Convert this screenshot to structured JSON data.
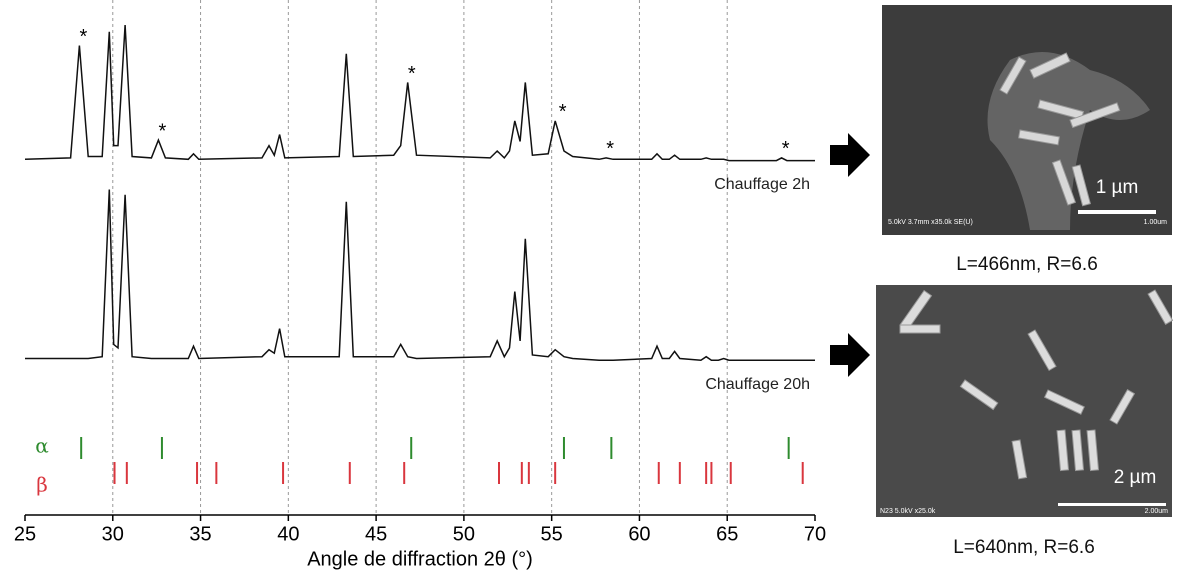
{
  "chart_data": {
    "type": "line",
    "x_label": "Angle de diffraction 2θ (°)",
    "x": [
      25,
      27.6,
      28.1,
      28.6,
      29.4,
      29.8,
      30.05,
      30.3,
      30.7,
      31.1,
      32.2,
      32.6,
      33.0,
      34.3,
      34.6,
      34.9,
      38.5,
      38.9,
      39.2,
      39.5,
      39.8,
      42.9,
      43.3,
      43.7,
      46.0,
      46.4,
      46.8,
      47.3,
      51.5,
      51.9,
      52.3,
      52.6,
      52.9,
      53.2,
      53.5,
      53.9,
      54.8,
      55.2,
      55.7,
      56.2,
      57.7,
      58.1,
      58.5,
      60.7,
      61.0,
      61.3,
      61.7,
      62.0,
      62.3,
      63.5,
      63.8,
      64.1,
      64.5,
      64.8,
      65.1,
      67.8,
      68.1,
      68.4,
      70
    ],
    "series": [
      {
        "name": "Chauffage 2h",
        "color": "#111111",
        "values": [
          2,
          3,
          85,
          4,
          4,
          95,
          12,
          12,
          100,
          4,
          3,
          16,
          3,
          2,
          6,
          2,
          3,
          12,
          5,
          20,
          3,
          4,
          79,
          4,
          5,
          12,
          58,
          5,
          3,
          8,
          3,
          8,
          30,
          15,
          58,
          5,
          6,
          30,
          8,
          4,
          2,
          3,
          2,
          2,
          6,
          2,
          2,
          5,
          2,
          2,
          3,
          2,
          2,
          2,
          1,
          1,
          3,
          1,
          1
        ]
      },
      {
        "name": "Chauffage 20h",
        "color": "#111111",
        "values": [
          2,
          2,
          2,
          2,
          3,
          98,
          10,
          8,
          95,
          3,
          2,
          2,
          2,
          2,
          9,
          2,
          3,
          7,
          5,
          19,
          3,
          3,
          91,
          3,
          3,
          10,
          3,
          2,
          3,
          12,
          3,
          8,
          40,
          12,
          70,
          4,
          3,
          7,
          3,
          2,
          1,
          1,
          1,
          2,
          9,
          2,
          2,
          6,
          2,
          1,
          3,
          1,
          1,
          2,
          1,
          1,
          1,
          1,
          1
        ]
      }
    ],
    "ylim": [
      0,
      100
    ],
    "xlim": [
      25,
      70
    ],
    "xticks": [
      25,
      30,
      35,
      40,
      45,
      50,
      55,
      60,
      65,
      70
    ],
    "grid": true,
    "annotations": [
      {
        "x": 28.1,
        "text": "*"
      },
      {
        "x": 32.6,
        "text": "*"
      },
      {
        "x": 46.8,
        "text": "*"
      },
      {
        "x": 55.4,
        "text": "*"
      },
      {
        "x": 58.1,
        "text": "*"
      },
      {
        "x": 68.1,
        "text": "*"
      }
    ],
    "references": [
      {
        "name": "α",
        "color": "#2e8b2e",
        "positions": [
          28.2,
          32.8,
          47.0,
          55.7,
          58.4,
          68.5
        ]
      },
      {
        "name": "β",
        "color": "#d9363e",
        "positions": [
          30.1,
          30.8,
          34.8,
          35.9,
          39.7,
          43.5,
          46.6,
          52.0,
          53.3,
          53.7,
          55.2,
          61.1,
          62.3,
          63.8,
          64.1,
          65.2,
          69.3
        ]
      }
    ]
  },
  "images": [
    {
      "scale": "1 µm",
      "info": "5.0kV 3.7mm x35.0k SE(U)",
      "bar_label": "1.00um",
      "caption": "L=466nm, R=6.6"
    },
    {
      "scale": "2 µm",
      "info": "N23 5.0kV x25.0k",
      "bar_label": "2.00um",
      "caption": "L=640nm, R=6.6"
    }
  ]
}
